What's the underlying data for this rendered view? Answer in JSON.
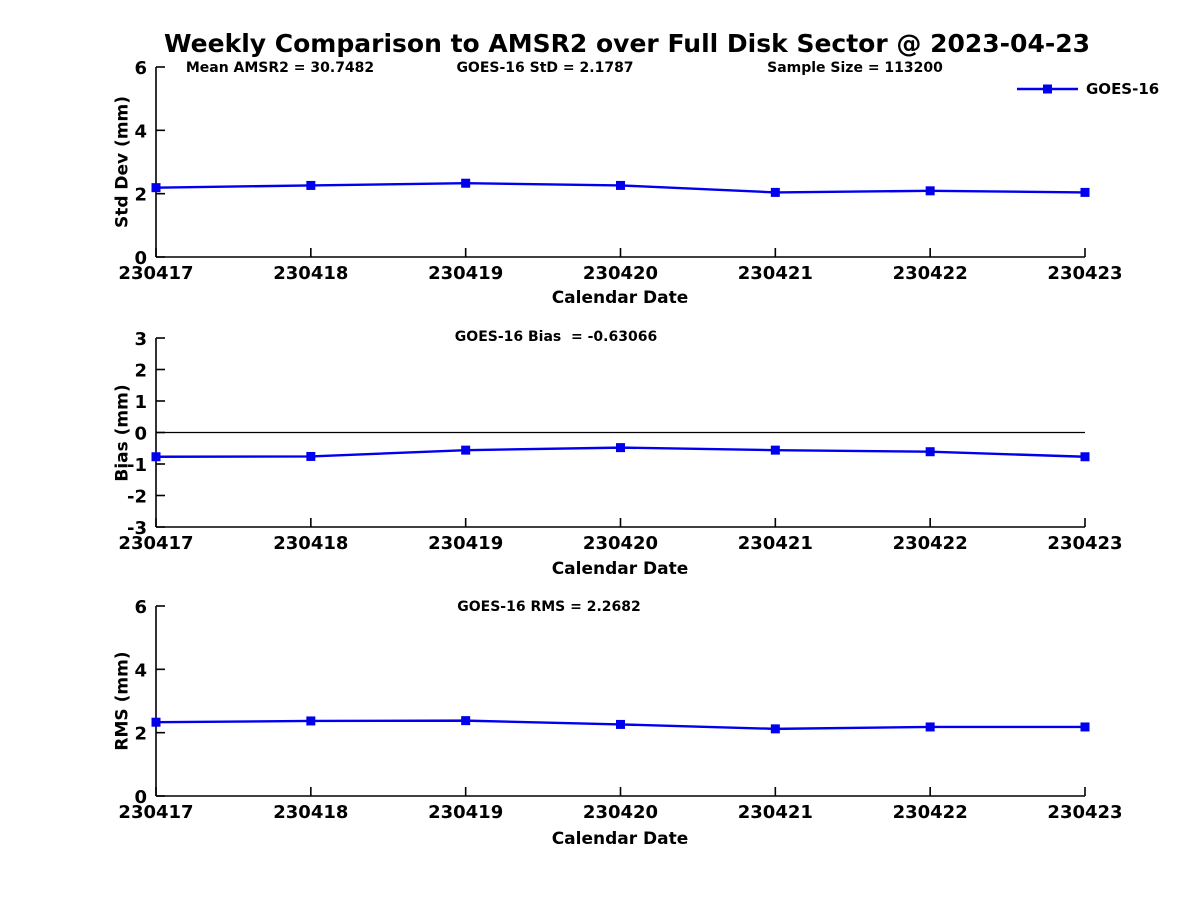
{
  "figure": {
    "title": "Weekly Comparison to AMSR2 over Full Disk Sector @ 2023-04-23"
  },
  "header_annotations": [
    {
      "text": "Mean AMSR2 = 30.7482"
    },
    {
      "text": "GOES-16 StD = 2.1787"
    },
    {
      "text": "Sample Size = 113200"
    }
  ],
  "legend": {
    "label": "GOES-16",
    "position": "top-right",
    "line_color": "#0000EE",
    "marker": "filled-square"
  },
  "chart_data": [
    {
      "type": "line",
      "name": "std-dev-plot",
      "annotation": "",
      "categories": [
        "230417",
        "230418",
        "230419",
        "230420",
        "230421",
        "230422",
        "230423"
      ],
      "series": [
        {
          "name": "GOES-16",
          "values": [
            2.19,
            2.26,
            2.33,
            2.26,
            2.04,
            2.09,
            2.04
          ]
        }
      ],
      "xlabel": "Calendar Date",
      "ylabel": "Std Dev (mm)",
      "ylim": [
        0,
        6
      ],
      "yticks": [
        0,
        2,
        4,
        6
      ],
      "zero_line": false,
      "grid": false
    },
    {
      "type": "line",
      "name": "bias-plot",
      "annotation": "GOES-16 Bias  = -0.63066",
      "categories": [
        "230417",
        "230418",
        "230419",
        "230420",
        "230421",
        "230422",
        "230423"
      ],
      "series": [
        {
          "name": "GOES-16",
          "values": [
            -0.77,
            -0.76,
            -0.56,
            -0.48,
            -0.56,
            -0.61,
            -0.77
          ]
        }
      ],
      "xlabel": "Calendar Date",
      "ylabel": "Bias (mm)",
      "ylim": [
        -3,
        3
      ],
      "yticks": [
        3,
        2,
        1,
        0,
        -1,
        -2,
        -3
      ],
      "zero_line": true,
      "grid": false
    },
    {
      "type": "line",
      "name": "rms-plot",
      "annotation": "GOES-16 RMS = 2.2682",
      "categories": [
        "230417",
        "230418",
        "230419",
        "230420",
        "230421",
        "230422",
        "230423"
      ],
      "series": [
        {
          "name": "GOES-16",
          "values": [
            2.33,
            2.37,
            2.38,
            2.26,
            2.12,
            2.18,
            2.18
          ]
        }
      ],
      "xlabel": "Calendar Date",
      "ylabel": "RMS (mm)",
      "ylim": [
        0,
        6
      ],
      "yticks": [
        0,
        2,
        4,
        6
      ],
      "zero_line": false,
      "grid": false
    }
  ]
}
